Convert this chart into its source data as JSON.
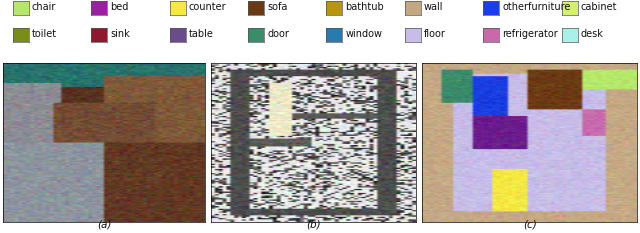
{
  "legend_row1": [
    {
      "label": "chair",
      "color": "#b5e86a"
    },
    {
      "label": "bed",
      "color": "#9b1fa3"
    },
    {
      "label": "counter",
      "color": "#f5e842"
    },
    {
      "label": "sofa",
      "color": "#6b3a12"
    },
    {
      "label": "bathtub",
      "color": "#b8960c"
    },
    {
      "label": "wall",
      "color": "#c4a882"
    },
    {
      "label": "otherfurniture",
      "color": "#1a3fe8"
    },
    {
      "label": "cabinet",
      "color": "#d4f06e"
    }
  ],
  "legend_row2": [
    {
      "label": "toilet",
      "color": "#7a8c1a"
    },
    {
      "label": "sink",
      "color": "#8b1a2e"
    },
    {
      "label": "table",
      "color": "#6a4c8a"
    },
    {
      "label": "door",
      "color": "#3a8c6a"
    },
    {
      "label": "window",
      "color": "#2a7ab0"
    },
    {
      "label": "floor",
      "color": "#c8bce8"
    },
    {
      "label": "refrigerator",
      "color": "#c86aaa"
    },
    {
      "label": "desk",
      "color": "#a8f0e8"
    }
  ],
  "bg_color": "#ffffff",
  "font_size": 7.0
}
